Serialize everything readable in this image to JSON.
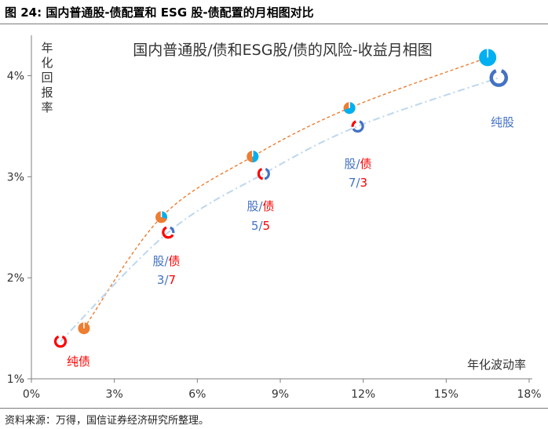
{
  "header": {
    "figure_title": "图 24: 国内普通股-债配置和 ESG 股-债配置的月相图对比"
  },
  "footer": {
    "source": "资料来源：万得，国信证券经济研究所整理。"
  },
  "chart_data": {
    "type": "line",
    "title": "国内普通股/债和ESG股/债的风险-收益月相图",
    "xlabel": "年化波动率",
    "ylabel": "年化回报率",
    "xlim": [
      0,
      18
    ],
    "ylim": [
      1,
      4.4
    ],
    "x_ticks": [
      "0%",
      "3%",
      "6%",
      "9%",
      "12%",
      "15%",
      "18%"
    ],
    "y_ticks": [
      "1%",
      "2%",
      "3%",
      "4%"
    ],
    "colors": {
      "series_a": "#ed7d31",
      "series_b": "#bdd7ee",
      "pie_blue": "#00b0f0",
      "ring_red": "#ff0000",
      "ring_blue": "#4472c4",
      "label_blue": "#4472c4",
      "label_red": "#ff0000"
    },
    "series": [
      {
        "name": "普通股/债",
        "line_style": "dashed",
        "x": [
          1.9,
          4.7,
          8.0,
          11.5,
          16.5
        ],
        "y": [
          1.5,
          2.6,
          3.2,
          3.68,
          4.18
        ]
      },
      {
        "name": "ESG股/债",
        "line_style": "dashdot",
        "x": [
          1.05,
          4.95,
          8.4,
          11.8,
          16.9
        ],
        "y": [
          1.37,
          2.45,
          3.03,
          3.5,
          3.98
        ]
      }
    ],
    "pie_markers": [
      {
        "x": 1.9,
        "y": 1.5,
        "equity_share": 0.0
      },
      {
        "x": 4.7,
        "y": 2.6,
        "equity_share": 0.3
      },
      {
        "x": 8.0,
        "y": 3.2,
        "equity_share": 0.5
      },
      {
        "x": 11.5,
        "y": 3.68,
        "equity_share": 0.7
      },
      {
        "x": 16.5,
        "y": 4.18,
        "equity_share": 1.0
      }
    ],
    "ring_markers": [
      {
        "x": 1.05,
        "y": 1.37,
        "equity_share": 0.0
      },
      {
        "x": 4.95,
        "y": 2.45,
        "equity_share": 0.3
      },
      {
        "x": 8.4,
        "y": 3.03,
        "equity_share": 0.5
      },
      {
        "x": 11.8,
        "y": 3.5,
        "equity_share": 0.7
      },
      {
        "x": 16.9,
        "y": 3.98,
        "equity_share": 1.0
      }
    ],
    "annotations": [
      {
        "id": "a1",
        "line1": "纯债",
        "line2_left": "",
        "sep": "",
        "line2_right": ""
      },
      {
        "id": "a2",
        "line1_left": "股",
        "line1_sep": "/",
        "line1_right": "债",
        "line2_left": "3",
        "sep": "/",
        "line2_right": "7"
      },
      {
        "id": "a3",
        "line1_left": "股",
        "line1_sep": "/",
        "line1_right": "债",
        "line2_left": "5",
        "sep": "/",
        "line2_right": "5"
      },
      {
        "id": "a4",
        "line1_left": "股",
        "line1_sep": "/",
        "line1_right": "债",
        "line2_left": "7",
        "sep": "/",
        "line2_right": "3"
      },
      {
        "id": "a5",
        "line1": "纯股",
        "line2_left": "",
        "sep": "",
        "line2_right": ""
      }
    ]
  }
}
